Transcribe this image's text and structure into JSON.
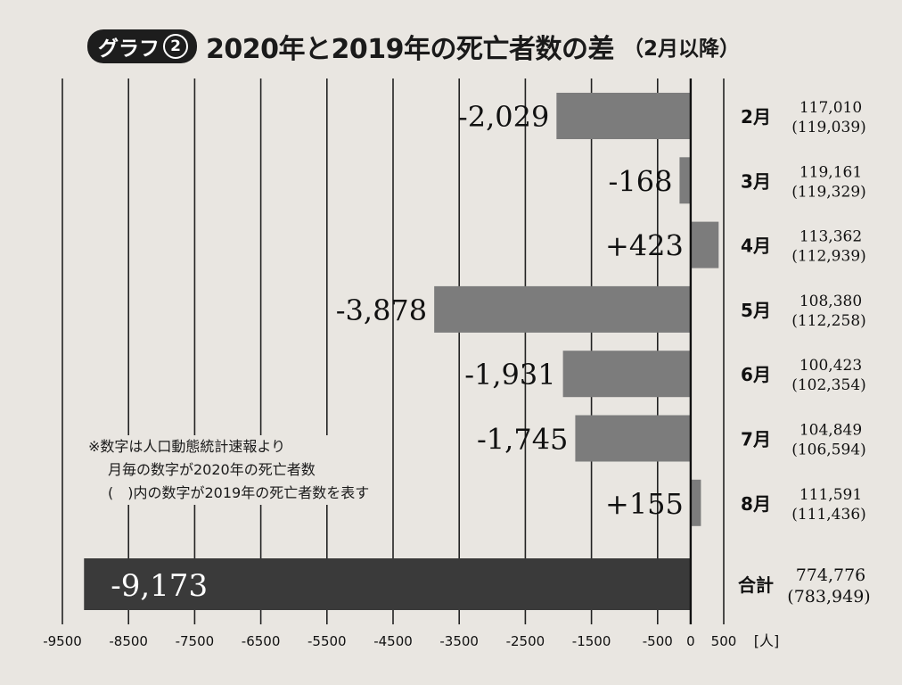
{
  "title": {
    "badge_text": "グラフ",
    "badge_number": "2",
    "main": "2020年と2019年の死亡者数の差",
    "sub": "（2月以降）"
  },
  "note": {
    "line1": "※数字は人口動態統計速報より",
    "line2": "月毎の数字が2020年の死亡者数",
    "line3": "(　)内の数字が2019年の死亡者数を表す"
  },
  "colors": {
    "bar": "#7c7c7c",
    "total_bar": "#3a3a3a",
    "gridline": "#222222",
    "background": "#e9e6e1"
  },
  "chart_data": {
    "type": "bar",
    "orientation": "horizontal",
    "title": "2020年と2019年の死亡者数の差（2月以降）",
    "unit": "[人]",
    "xlim": [
      -9500,
      500
    ],
    "x_ticks": [
      -9500,
      -8500,
      -7500,
      -6500,
      -5500,
      -4500,
      -3500,
      -2500,
      -1500,
      -500,
      0,
      500
    ],
    "grid": true,
    "categories": [
      "2月",
      "3月",
      "4月",
      "5月",
      "6月",
      "7月",
      "8月",
      "合計"
    ],
    "values": [
      -2029,
      -168,
      423,
      -3878,
      -1931,
      -1745,
      155,
      -9173
    ],
    "value_labels": [
      "-2,029",
      "-168",
      "+423",
      "-3,878",
      "-1,931",
      "-1,745",
      "+155",
      "-9,173"
    ],
    "deaths_2020": [
      "117,010",
      "119,161",
      "113,362",
      "108,380",
      "100,423",
      "104,849",
      "111,591",
      "774,776"
    ],
    "deaths_2019": [
      "(119,039)",
      "(119,329)",
      "(112,939)",
      "(112,258)",
      "(102,354)",
      "(106,594)",
      "(111,436)",
      "(783,949)"
    ]
  }
}
